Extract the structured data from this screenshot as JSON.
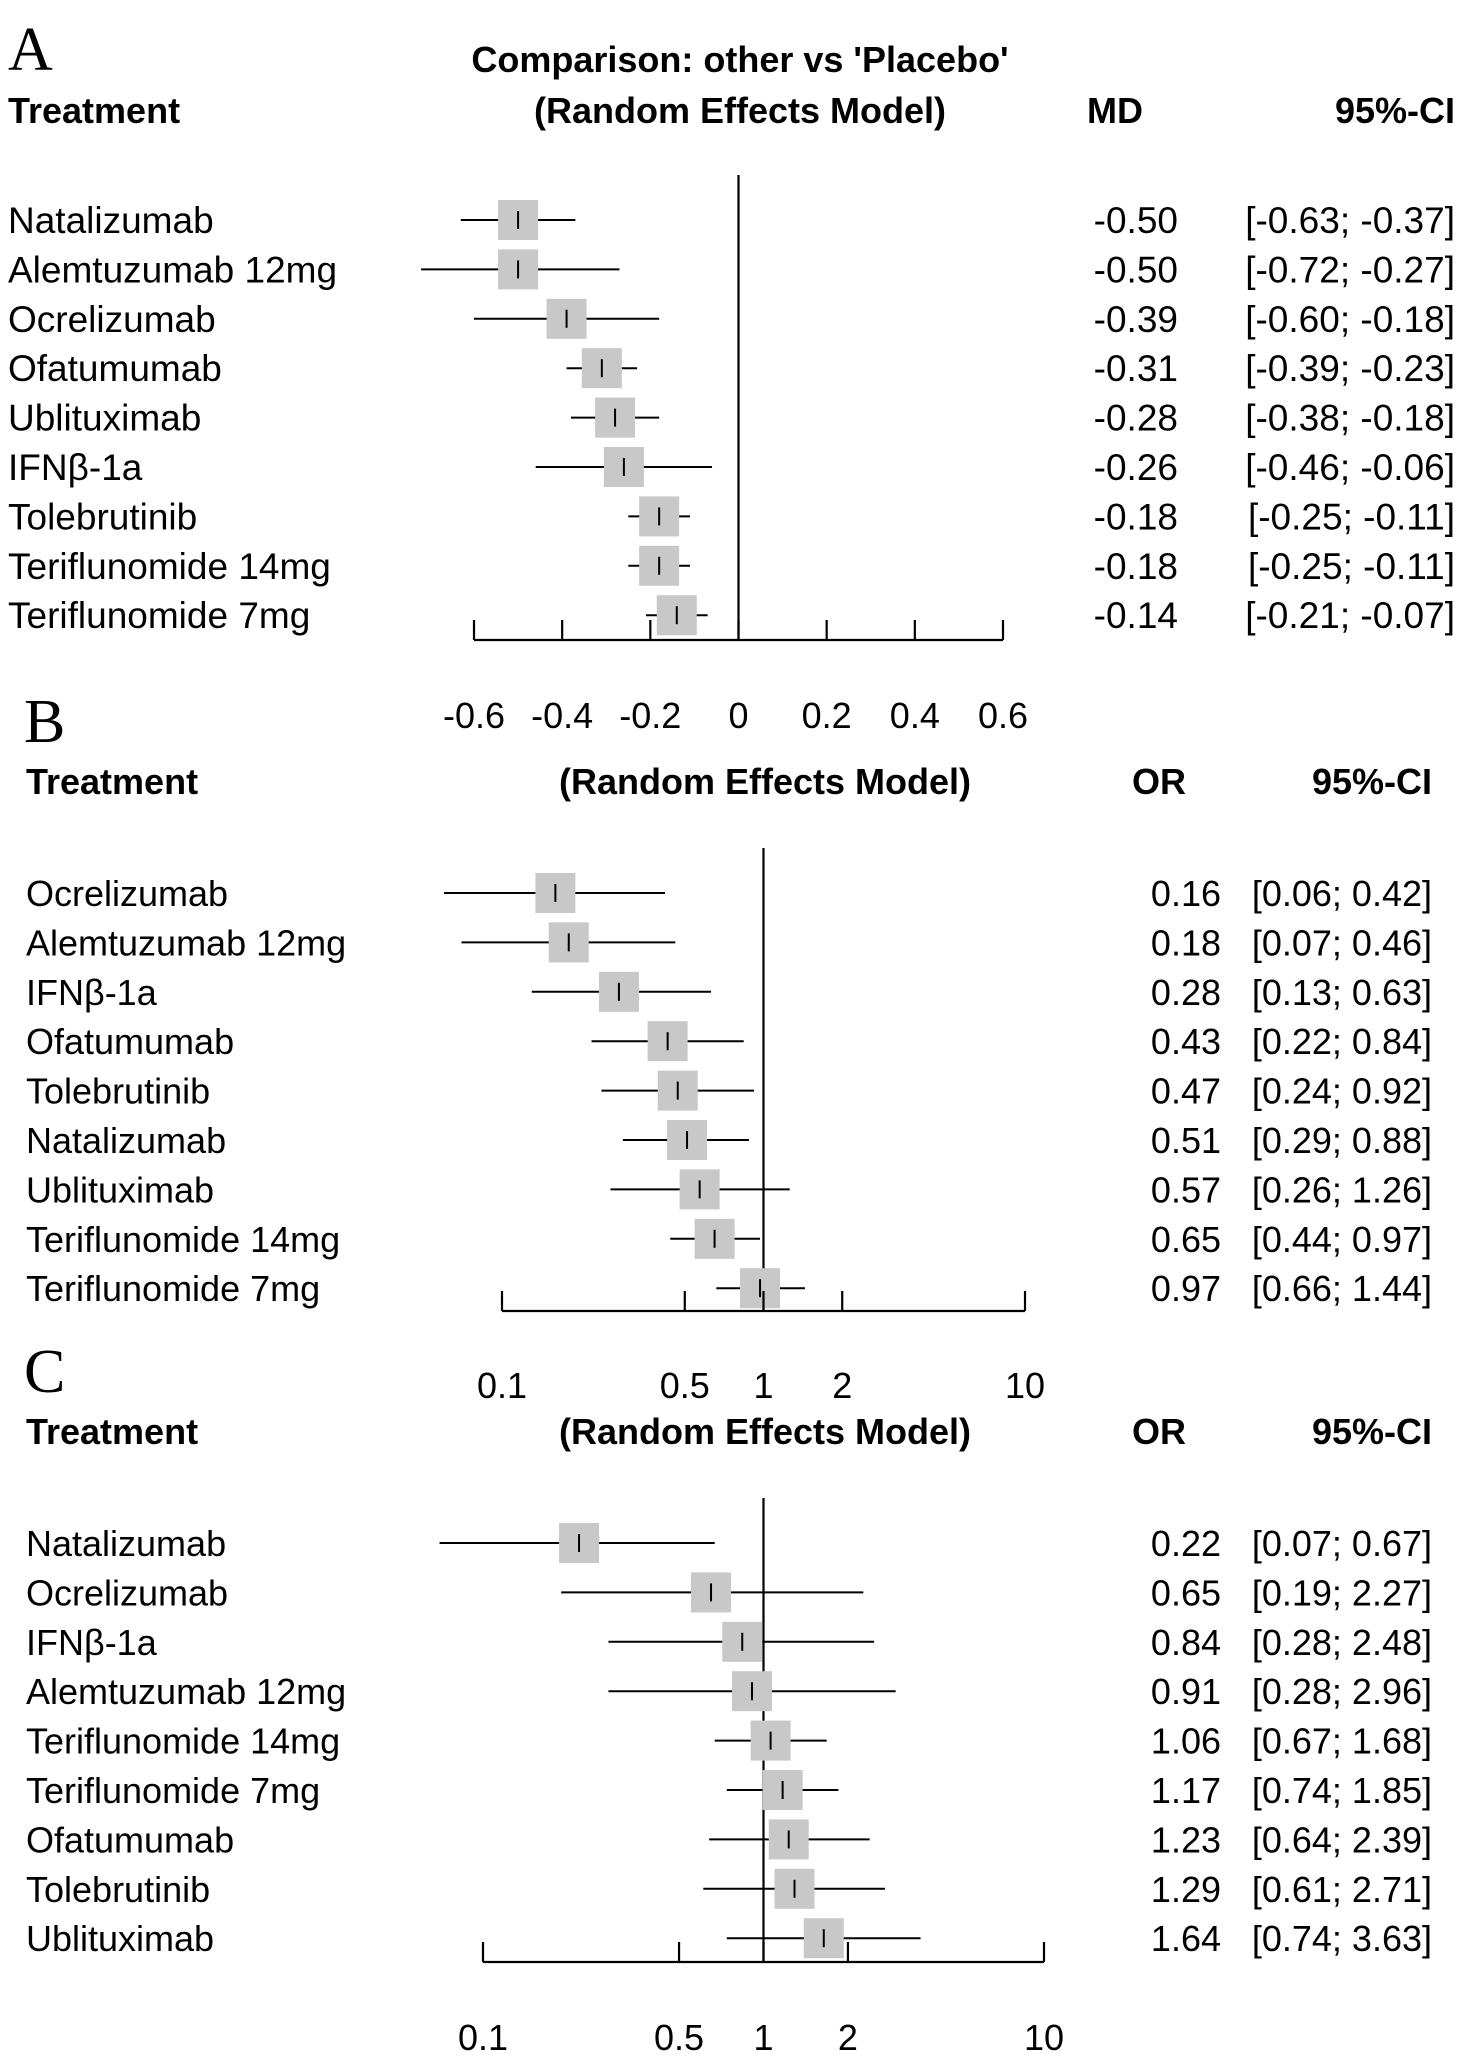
{
  "chart_data": [
    {
      "panel_label": "A",
      "type": "forest",
      "title": "Comparison: other vs 'Placebo'",
      "subtitle": "(Random Effects Model)",
      "col_treatment": "Treatment",
      "col_effect": "MD",
      "col_ci": "95%-CI",
      "scale": "linear",
      "xlim": [
        -0.6,
        0.6
      ],
      "ticks": [
        -0.6,
        -0.4,
        -0.2,
        0,
        0.2,
        0.4,
        0.6
      ],
      "tick_labels": [
        "-0.6",
        "-0.4",
        "-0.2",
        "0",
        "0.2",
        "0.4",
        "0.6"
      ],
      "ref_line": 0,
      "rows": [
        {
          "treatment": "Natalizumab",
          "est": -0.5,
          "lo": -0.63,
          "hi": -0.37,
          "est_label": "-0.50",
          "ci_label": "[-0.63; -0.37]"
        },
        {
          "treatment": "Alemtuzumab 12mg",
          "est": -0.5,
          "lo": -0.72,
          "hi": -0.27,
          "est_label": "-0.50",
          "ci_label": "[-0.72; -0.27]"
        },
        {
          "treatment": "Ocrelizumab",
          "est": -0.39,
          "lo": -0.6,
          "hi": -0.18,
          "est_label": "-0.39",
          "ci_label": "[-0.60; -0.18]"
        },
        {
          "treatment": "Ofatumumab",
          "est": -0.31,
          "lo": -0.39,
          "hi": -0.23,
          "est_label": "-0.31",
          "ci_label": "[-0.39; -0.23]"
        },
        {
          "treatment": "Ublituximab",
          "est": -0.28,
          "lo": -0.38,
          "hi": -0.18,
          "est_label": "-0.28",
          "ci_label": "[-0.38; -0.18]"
        },
        {
          "treatment": "IFNβ-1a",
          "est": -0.26,
          "lo": -0.46,
          "hi": -0.06,
          "est_label": "-0.26",
          "ci_label": "[-0.46; -0.06]"
        },
        {
          "treatment": "Tolebrutinib",
          "est": -0.18,
          "lo": -0.25,
          "hi": -0.11,
          "est_label": "-0.18",
          "ci_label": "[-0.25; -0.11]"
        },
        {
          "treatment": "Teriflunomide 14mg",
          "est": -0.18,
          "lo": -0.25,
          "hi": -0.11,
          "est_label": "-0.18",
          "ci_label": "[-0.25; -0.11]"
        },
        {
          "treatment": "Teriflunomide 7mg",
          "est": -0.14,
          "lo": -0.21,
          "hi": -0.07,
          "est_label": "-0.14",
          "ci_label": "[-0.21; -0.07]"
        }
      ]
    },
    {
      "panel_label": "B",
      "type": "forest",
      "title": "",
      "subtitle": "(Random Effects Model)",
      "col_treatment": "Treatment",
      "col_effect": "OR",
      "col_ci": "95%-CI",
      "scale": "log",
      "xlim": [
        0.1,
        10
      ],
      "ticks": [
        0.1,
        0.5,
        1,
        2,
        10
      ],
      "tick_labels": [
        "0.1",
        "0.5",
        "1",
        "2",
        "10"
      ],
      "ref_line": 1,
      "rows": [
        {
          "treatment": "Ocrelizumab",
          "est": 0.16,
          "lo": 0.06,
          "hi": 0.42,
          "est_label": "0.16",
          "ci_label": "[0.06; 0.42]"
        },
        {
          "treatment": "Alemtuzumab 12mg",
          "est": 0.18,
          "lo": 0.07,
          "hi": 0.46,
          "est_label": "0.18",
          "ci_label": "[0.07; 0.46]"
        },
        {
          "treatment": "IFNβ-1a",
          "est": 0.28,
          "lo": 0.13,
          "hi": 0.63,
          "est_label": "0.28",
          "ci_label": "[0.13; 0.63]"
        },
        {
          "treatment": "Ofatumumab",
          "est": 0.43,
          "lo": 0.22,
          "hi": 0.84,
          "est_label": "0.43",
          "ci_label": "[0.22; 0.84]"
        },
        {
          "treatment": "Tolebrutinib",
          "est": 0.47,
          "lo": 0.24,
          "hi": 0.92,
          "est_label": "0.47",
          "ci_label": "[0.24; 0.92]"
        },
        {
          "treatment": "Natalizumab",
          "est": 0.51,
          "lo": 0.29,
          "hi": 0.88,
          "est_label": "0.51",
          "ci_label": "[0.29; 0.88]"
        },
        {
          "treatment": "Ublituximab",
          "est": 0.57,
          "lo": 0.26,
          "hi": 1.26,
          "est_label": "0.57",
          "ci_label": "[0.26; 1.26]"
        },
        {
          "treatment": "Teriflunomide 14mg",
          "est": 0.65,
          "lo": 0.44,
          "hi": 0.97,
          "est_label": "0.65",
          "ci_label": "[0.44; 0.97]"
        },
        {
          "treatment": "Teriflunomide 7mg",
          "est": 0.97,
          "lo": 0.66,
          "hi": 1.44,
          "est_label": "0.97",
          "ci_label": "[0.66; 1.44]"
        }
      ]
    },
    {
      "panel_label": "C",
      "type": "forest",
      "title": "",
      "subtitle": "(Random Effects Model)",
      "col_treatment": "Treatment",
      "col_effect": "OR",
      "col_ci": "95%-CI",
      "scale": "log",
      "xlim": [
        0.1,
        10
      ],
      "ticks": [
        0.1,
        0.5,
        1,
        2,
        10
      ],
      "tick_labels": [
        "0.1",
        "0.5",
        "1",
        "2",
        "10"
      ],
      "ref_line": 1,
      "rows": [
        {
          "treatment": "Natalizumab",
          "est": 0.22,
          "lo": 0.07,
          "hi": 0.67,
          "est_label": "0.22",
          "ci_label": "[0.07; 0.67]"
        },
        {
          "treatment": "Ocrelizumab",
          "est": 0.65,
          "lo": 0.19,
          "hi": 2.27,
          "est_label": "0.65",
          "ci_label": "[0.19; 2.27]"
        },
        {
          "treatment": "IFNβ-1a",
          "est": 0.84,
          "lo": 0.28,
          "hi": 2.48,
          "est_label": "0.84",
          "ci_label": "[0.28; 2.48]"
        },
        {
          "treatment": "Alemtuzumab 12mg",
          "est": 0.91,
          "lo": 0.28,
          "hi": 2.96,
          "est_label": "0.91",
          "ci_label": "[0.28; 2.96]"
        },
        {
          "treatment": "Teriflunomide 14mg",
          "est": 1.06,
          "lo": 0.67,
          "hi": 1.68,
          "est_label": "1.06",
          "ci_label": "[0.67; 1.68]"
        },
        {
          "treatment": "Teriflunomide 7mg",
          "est": 1.17,
          "lo": 0.74,
          "hi": 1.85,
          "est_label": "1.17",
          "ci_label": "[0.74; 1.85]"
        },
        {
          "treatment": "Ofatumumab",
          "est": 1.23,
          "lo": 0.64,
          "hi": 2.39,
          "est_label": "1.23",
          "ci_label": "[0.64; 2.39]"
        },
        {
          "treatment": "Tolebrutinib",
          "est": 1.29,
          "lo": 0.61,
          "hi": 2.71,
          "est_label": "1.29",
          "ci_label": "[0.61; 2.71]"
        },
        {
          "treatment": "Ublituximab",
          "est": 1.64,
          "lo": 0.74,
          "hi": 3.63,
          "est_label": "1.64",
          "ci_label": "[0.74; 3.63]"
        }
      ]
    }
  ],
  "colors": {
    "box": "#c8c8c8",
    "line": "#000000",
    "text": "#000000"
  }
}
